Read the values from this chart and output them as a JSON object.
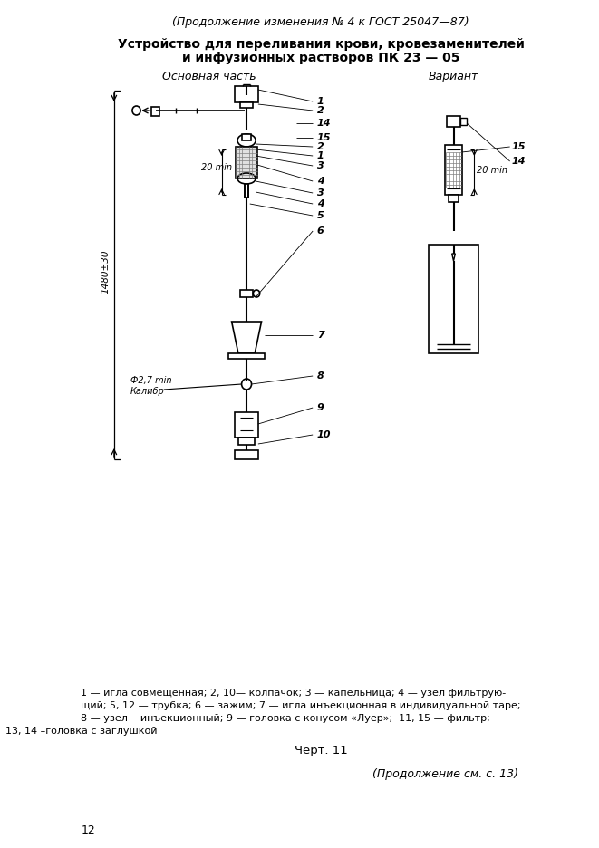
{
  "title_italic": "(Продолжение изменения № 4 к ГОСТ 25047—87)",
  "title_bold_line1": "Устройство для переливания крови, кровезаменителей",
  "title_bold_line2": "и инфузионных растворов ПК 23 — 05",
  "label_main": "Основная часть",
  "label_variant": "Вариант",
  "caption_line1": "1 — игла совмещенная; 2, 10— колпачок; 3 — капельница; 4 — узел фильтрую-",
  "caption_line2": "щий; 5, 12 — трубка; 6 — зажим; 7 — игла инъекционная в индивидуальной таре;",
  "caption_line3": "8 — узел    инъекционный; 9 — головка с конусом «Луер»;  11, 15 — фильтр;",
  "caption_line4": "13, 14 –головка с заглушкой",
  "chert": "Черт. 11",
  "footer": "(Продолжение см. с. 13)",
  "page_num": "12",
  "bg_color": "#ffffff",
  "line_color": "#000000"
}
